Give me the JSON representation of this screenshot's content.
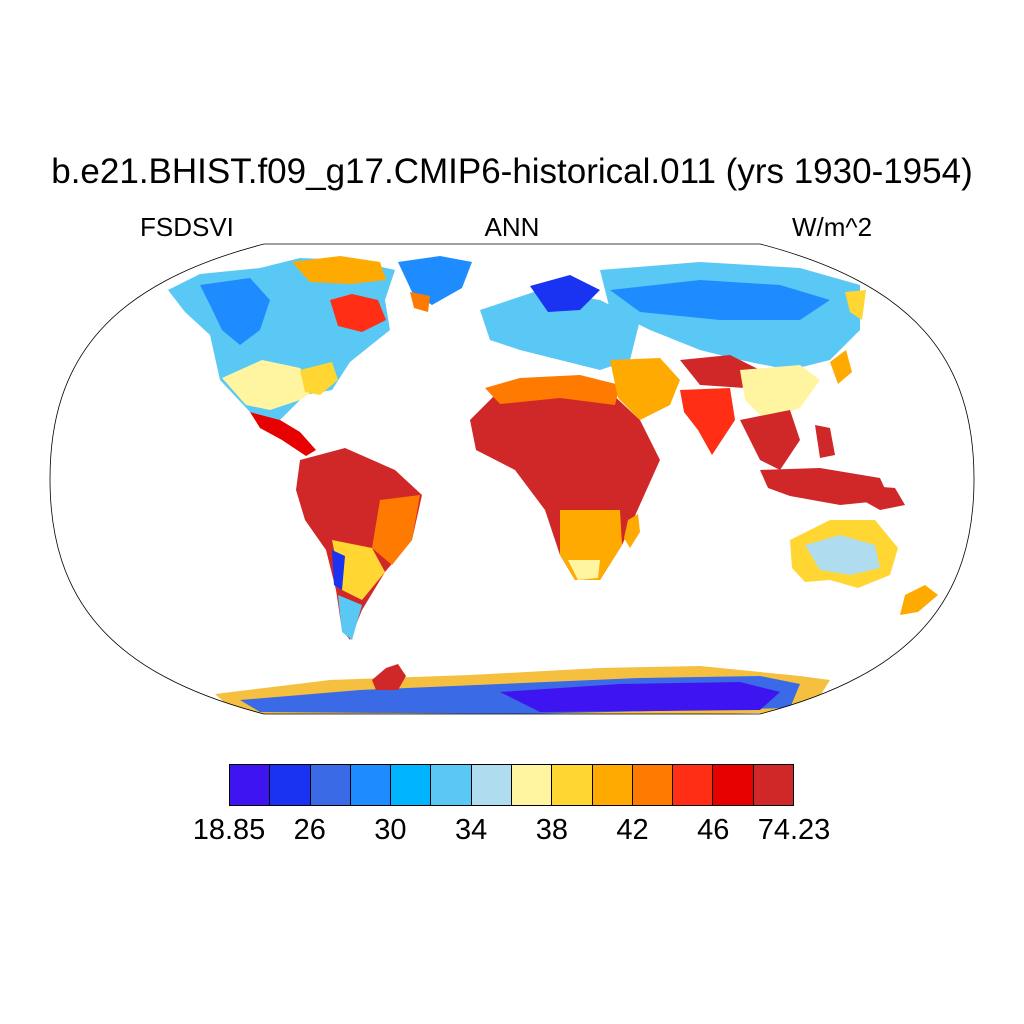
{
  "title": "b.e21.BHIST.f09_g17.CMIP6-historical.011 (yrs 1930-1954)",
  "subtitle_left": "FSDSVI",
  "subtitle_center": "ANN",
  "subtitle_right": "W/m^2",
  "map": {
    "projection": "Robinson",
    "coastlines": true,
    "ocean_fill": "#ffffff",
    "variable": "FSDSVI",
    "season": "ANN",
    "units": "W/m^2"
  },
  "colorbar": {
    "colors": [
      "#3e14f0",
      "#1a32f2",
      "#3a6ae6",
      "#1e8cff",
      "#00b4ff",
      "#5ac8f5",
      "#b0dcf0",
      "#fff5a0",
      "#ffd632",
      "#ffaa00",
      "#ff7a00",
      "#ff2e14",
      "#e60000",
      "#d02828"
    ],
    "labels": [
      "18.85",
      "26",
      "30",
      "34",
      "38",
      "42",
      "46",
      "74.23"
    ]
  }
}
